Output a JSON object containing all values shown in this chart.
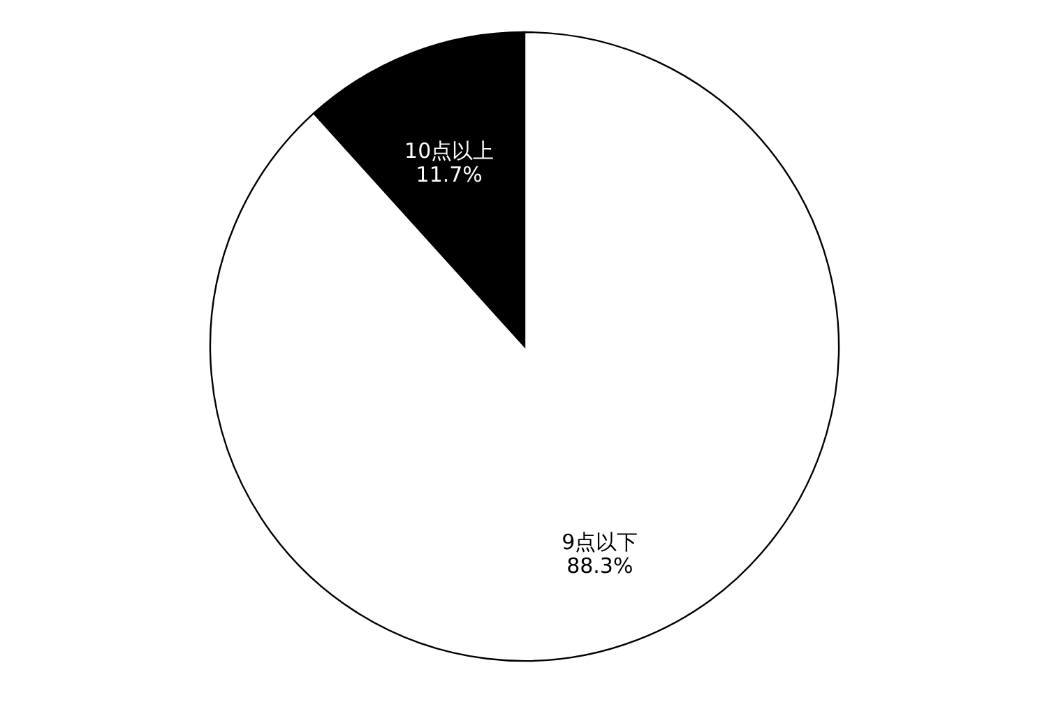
{
  "chart_data": {
    "type": "pie",
    "categories": [
      "10点以上",
      "9点以下"
    ],
    "values": [
      11.7,
      88.3
    ],
    "colors": [
      "#000000",
      "#ffffff"
    ],
    "value_labels": [
      "11.7%",
      "88.3%"
    ],
    "legend": false
  }
}
